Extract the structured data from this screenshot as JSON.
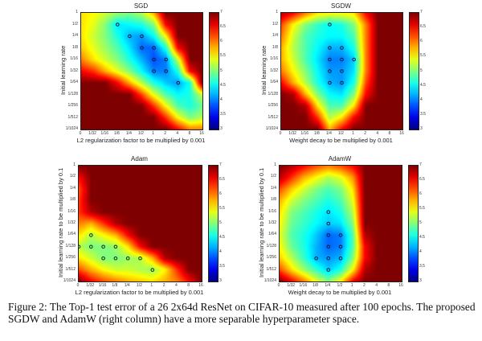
{
  "caption": "Figure 2:  The Top-1 test error of a 26 2x64d ResNet on CIFAR-10 measured after 100 epochs. The proposed SGDW and AdamW (right column) have a more separable hyperparameter space.",
  "chart_data": [
    {
      "type": "heatmap",
      "title": "SGD",
      "xlabel": "L2 regularization factor to be multiplied by 0.001",
      "ylabel": "Initial learning rate",
      "x_ticks": [
        "0",
        "1/32",
        "1/16",
        "1/8",
        "1/4",
        "1/2",
        "1",
        "2",
        "4",
        "8",
        "16"
      ],
      "y_ticks": [
        "1",
        "1/2",
        "1/4",
        "1/8",
        "1/16",
        "1/32",
        "1/64",
        "1/128",
        "1/256",
        "1/512",
        "1/1024"
      ],
      "colorbar": {
        "range": [
          3,
          7
        ],
        "ticks": [
          "3",
          "3.5",
          "4",
          "4.5",
          "5",
          "5.5",
          "6",
          "6.5",
          "7"
        ],
        "colormap": "jet"
      },
      "marker_color": "#0a1a3a",
      "values": [
        [
          5.6,
          5.5,
          5.3,
          5.1,
          5.0,
          5.2,
          5.8,
          7,
          7,
          7,
          7
        ],
        [
          5.6,
          5.4,
          5.0,
          4.4,
          4.5,
          4.6,
          5.0,
          6.5,
          7,
          7,
          7
        ],
        [
          5.6,
          5.3,
          5.0,
          4.6,
          4.2,
          4.1,
          4.5,
          5.5,
          7,
          7,
          7
        ],
        [
          5.7,
          5.4,
          5.1,
          4.8,
          4.4,
          3.9,
          3.9,
          4.6,
          6.5,
          7,
          7
        ],
        [
          6.0,
          5.6,
          5.3,
          5.0,
          4.6,
          4.2,
          3.8,
          4.0,
          5.3,
          7,
          7
        ],
        [
          6.5,
          6.3,
          5.8,
          5.4,
          5.0,
          4.5,
          4.0,
          4.0,
          4.6,
          6.5,
          7
        ],
        [
          7,
          7,
          7,
          6.5,
          5.8,
          5.2,
          4.6,
          4.3,
          4.1,
          4.6,
          7
        ],
        [
          7,
          7,
          7,
          7,
          7,
          6.2,
          5.4,
          4.8,
          4.5,
          4.6,
          5.3
        ],
        [
          7,
          7,
          7,
          7,
          7,
          7,
          6.3,
          5.5,
          4.8,
          4.6,
          4.9
        ],
        [
          7,
          7,
          7,
          7,
          7,
          7,
          7,
          6.3,
          5.5,
          5.0,
          5.2
        ],
        [
          7,
          7,
          7,
          7,
          7,
          7,
          7,
          7,
          6.5,
          6.0,
          6.0
        ]
      ],
      "best_points": [
        [
          "1/8",
          "1/2"
        ],
        [
          "1/4",
          "1/4"
        ],
        [
          "1/2",
          "1/4"
        ],
        [
          "1/2",
          "1/8"
        ],
        [
          "1",
          "1/8"
        ],
        [
          "1",
          "1/16"
        ],
        [
          "2",
          "1/16"
        ],
        [
          "1",
          "1/32"
        ],
        [
          "2",
          "1/32"
        ],
        [
          "4",
          "1/64"
        ]
      ]
    },
    {
      "type": "heatmap",
      "title": "SGDW",
      "xlabel": "Weight decay to be multiplied by 0.001",
      "ylabel": "Initial learning rate",
      "x_ticks": [
        "0",
        "1/32",
        "1/16",
        "1/8",
        "1/4",
        "1/2",
        "1",
        "2",
        "4",
        "8",
        "16"
      ],
      "y_ticks": [
        "1",
        "1/2",
        "1/4",
        "1/8",
        "1/16",
        "1/32",
        "1/64",
        "1/128",
        "1/256",
        "1/512",
        "1/1024"
      ],
      "colorbar": {
        "range": [
          3,
          7
        ],
        "ticks": [
          "3",
          "3.5",
          "4",
          "4.5",
          "5",
          "5.5",
          "6",
          "6.5",
          "7"
        ],
        "colormap": "jet"
      },
      "marker_color": "#0a1a3a",
      "values": [
        [
          6.8,
          6.5,
          6.0,
          5.6,
          5.5,
          5.5,
          5.6,
          6.5,
          7,
          7,
          7
        ],
        [
          6.2,
          5.5,
          5.0,
          4.7,
          4.5,
          4.6,
          5.0,
          6.0,
          7,
          7,
          7
        ],
        [
          6.0,
          5.3,
          4.8,
          4.6,
          4.5,
          4.5,
          4.8,
          6.0,
          7,
          7,
          7
        ],
        [
          5.8,
          5.2,
          4.8,
          4.5,
          4.2,
          4.2,
          4.6,
          6.0,
          7,
          7,
          7
        ],
        [
          5.8,
          5.3,
          4.8,
          4.4,
          4.0,
          4.0,
          4.3,
          6.0,
          7,
          7,
          7
        ],
        [
          6.0,
          5.5,
          5.0,
          4.5,
          4.1,
          4.1,
          4.4,
          6.0,
          7,
          7,
          7
        ],
        [
          6.5,
          5.8,
          5.2,
          4.6,
          4.2,
          4.1,
          4.6,
          6.2,
          7,
          7,
          7
        ],
        [
          7,
          6.8,
          5.8,
          5.0,
          4.5,
          4.4,
          5.0,
          6.5,
          7,
          7,
          7
        ],
        [
          7,
          7,
          6.8,
          5.6,
          4.8,
          4.8,
          5.6,
          7,
          7,
          7,
          7
        ],
        [
          7,
          7,
          7,
          6.3,
          5.2,
          5.6,
          6.5,
          7,
          7,
          7,
          7
        ],
        [
          7,
          7,
          7,
          7,
          5.8,
          6.5,
          7,
          7,
          7,
          7,
          7
        ]
      ],
      "best_points": [
        [
          "1/4",
          "1/2"
        ],
        [
          "1/4",
          "1/8"
        ],
        [
          "1/2",
          "1/8"
        ],
        [
          "1/4",
          "1/16"
        ],
        [
          "1/2",
          "1/16"
        ],
        [
          "1",
          "1/16"
        ],
        [
          "1/4",
          "1/32"
        ],
        [
          "1/2",
          "1/32"
        ],
        [
          "1/4",
          "1/64"
        ],
        [
          "1/2",
          "1/64"
        ]
      ]
    },
    {
      "type": "heatmap",
      "title": "Adam",
      "xlabel": "L2 regularization factor to be multiplied by 0.001",
      "ylabel": "Initial learning rate to be multiplied by 0.1",
      "x_ticks": [
        "0",
        "1/32",
        "1/16",
        "1/8",
        "1/4",
        "1/2",
        "1",
        "2",
        "4",
        "8",
        "16"
      ],
      "y_ticks": [
        "1",
        "1/2",
        "1/4",
        "1/8",
        "1/16",
        "1/32",
        "1/64",
        "1/128",
        "1/256",
        "1/512",
        "1/1024"
      ],
      "colorbar": {
        "range": [
          3,
          7
        ],
        "ticks": [
          "3",
          "3.5",
          "4",
          "4.5",
          "5",
          "5.5",
          "6",
          "6.5",
          "7"
        ],
        "colormap": "jet"
      },
      "marker_color": "#0d2a0d",
      "values": [
        [
          7,
          7,
          7,
          7,
          7,
          7,
          7,
          7,
          7,
          7,
          7
        ],
        [
          6.5,
          7,
          7,
          7,
          7,
          7,
          7,
          7,
          7,
          7,
          7
        ],
        [
          6.2,
          7,
          7,
          7,
          7,
          7,
          7,
          7,
          7,
          7,
          7
        ],
        [
          6.3,
          7,
          7,
          7,
          7,
          7,
          7,
          7,
          7,
          7,
          7
        ],
        [
          6.3,
          6.8,
          7,
          7,
          7,
          7,
          7,
          7,
          7,
          7,
          7
        ],
        [
          6.0,
          5.8,
          6.3,
          6.8,
          7,
          7,
          7,
          7,
          7,
          7,
          7
        ],
        [
          5.6,
          5.2,
          5.5,
          5.8,
          6.5,
          7,
          7,
          7,
          7,
          7,
          7
        ],
        [
          5.2,
          5.0,
          5.0,
          5.1,
          5.6,
          6.5,
          7,
          7,
          7,
          7,
          7
        ],
        [
          5.6,
          5.3,
          5.0,
          5.0,
          5.1,
          5.2,
          5.8,
          6.8,
          7,
          7,
          7
        ],
        [
          6.2,
          5.8,
          5.5,
          5.3,
          5.3,
          5.2,
          5.1,
          5.5,
          6.3,
          7,
          7
        ],
        [
          7,
          6.5,
          6.2,
          6.0,
          5.8,
          5.7,
          5.6,
          5.8,
          6.0,
          6.5,
          7
        ]
      ],
      "best_points": [
        [
          "1/32",
          "1/64"
        ],
        [
          "0",
          "1/128"
        ],
        [
          "1/32",
          "1/128"
        ],
        [
          "1/16",
          "1/128"
        ],
        [
          "1/8",
          "1/128"
        ],
        [
          "1/16",
          "1/256"
        ],
        [
          "1/8",
          "1/256"
        ],
        [
          "1/4",
          "1/256"
        ],
        [
          "1/2",
          "1/256"
        ],
        [
          "1",
          "1/512"
        ]
      ]
    },
    {
      "type": "heatmap",
      "title": "AdamW",
      "xlabel": "Weight decay to be multiplied by 0.001",
      "ylabel": "Initial learning rate to be multiplied by 0.1",
      "x_ticks": [
        "0",
        "1/32",
        "1/16",
        "1/8",
        "1/4",
        "1/2",
        "1",
        "2",
        "4",
        "8",
        "16"
      ],
      "y_ticks": [
        "1",
        "1/2",
        "1/4",
        "1/8",
        "1/16",
        "1/32",
        "1/64",
        "1/128",
        "1/256",
        "1/512",
        "1/1024"
      ],
      "colorbar": {
        "range": [
          3,
          7
        ],
        "ticks": [
          "3",
          "3.5",
          "4",
          "4.5",
          "5",
          "5.5",
          "6",
          "6.5",
          "7"
        ],
        "colormap": "jet"
      },
      "marker_color": "#0a1a3a",
      "values": [
        [
          7,
          6.8,
          6.5,
          6.2,
          6.0,
          6.2,
          6.5,
          7,
          7,
          7,
          7
        ],
        [
          6.8,
          6.3,
          5.8,
          5.5,
          5.2,
          5.4,
          5.9,
          7,
          7,
          7,
          7
        ],
        [
          6.2,
          5.7,
          5.3,
          5.0,
          4.8,
          5.0,
          5.6,
          7,
          7,
          7,
          7
        ],
        [
          5.8,
          5.3,
          5.0,
          4.8,
          4.6,
          4.8,
          5.4,
          7,
          7,
          7,
          7
        ],
        [
          5.6,
          5.0,
          4.8,
          4.6,
          4.4,
          4.6,
          5.2,
          7,
          7,
          7,
          7
        ],
        [
          5.5,
          4.9,
          4.7,
          4.5,
          4.3,
          4.4,
          5.0,
          7,
          7,
          7,
          7
        ],
        [
          5.4,
          4.8,
          4.6,
          4.3,
          3.9,
          4.0,
          4.8,
          6.8,
          7,
          7,
          7
        ],
        [
          5.5,
          4.9,
          4.6,
          4.2,
          3.9,
          4.0,
          4.8,
          6.5,
          7,
          7,
          7
        ],
        [
          5.7,
          5.2,
          4.7,
          4.2,
          4.1,
          4.2,
          5.0,
          6.5,
          7,
          7,
          7
        ],
        [
          6.2,
          5.6,
          5.1,
          4.7,
          4.3,
          4.6,
          5.5,
          6.8,
          7,
          7,
          7
        ],
        [
          7,
          6.5,
          6.0,
          5.4,
          5.0,
          5.5,
          6.5,
          7,
          7,
          7,
          7
        ]
      ],
      "best_points": [
        [
          "1/4",
          "1/16"
        ],
        [
          "1/4",
          "1/32"
        ],
        [
          "1/4",
          "1/64"
        ],
        [
          "1/2",
          "1/64"
        ],
        [
          "1/4",
          "1/128"
        ],
        [
          "1/2",
          "1/128"
        ],
        [
          "1/8",
          "1/256"
        ],
        [
          "1/4",
          "1/256"
        ],
        [
          "1/2",
          "1/256"
        ],
        [
          "1/4",
          "1/512"
        ]
      ]
    }
  ]
}
